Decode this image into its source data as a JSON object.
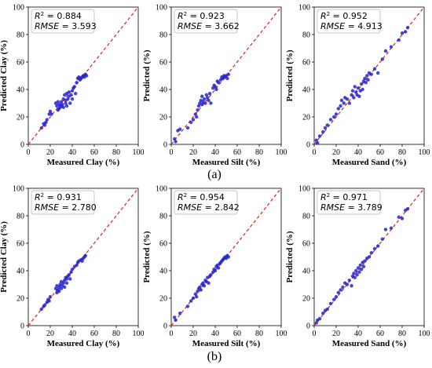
{
  "figure": {
    "panel_labels": [
      "(a)",
      "(b)"
    ]
  },
  "chart_data": [
    {
      "id": "a1",
      "row": 0,
      "col": 0,
      "type": "scatter",
      "xlabel": "Measured Clay (%)",
      "ylabel": "Predicted Clay (%)",
      "stats": {
        "r2": "0.884",
        "rmse": "3.593"
      },
      "xlim": [
        0,
        100
      ],
      "ylim": [
        0,
        100
      ],
      "ticks": [
        0,
        20,
        40,
        60,
        80,
        100
      ],
      "reference_line": "y = x",
      "point_color": "#2222cc",
      "line_color": "#e0201a",
      "points": [
        [
          12,
          12
        ],
        [
          14,
          15
        ],
        [
          15,
          14
        ],
        [
          16,
          16
        ],
        [
          17,
          18
        ],
        [
          19,
          22
        ],
        [
          20,
          24
        ],
        [
          21,
          22
        ],
        [
          25,
          30
        ],
        [
          26,
          28
        ],
        [
          27,
          31
        ],
        [
          27,
          25
        ],
        [
          28,
          26
        ],
        [
          28,
          29
        ],
        [
          29,
          27
        ],
        [
          30,
          28
        ],
        [
          30,
          31
        ],
        [
          31,
          29
        ],
        [
          32,
          27
        ],
        [
          32,
          33
        ],
        [
          33,
          36
        ],
        [
          34,
          30
        ],
        [
          34,
          32
        ],
        [
          35,
          28
        ],
        [
          35,
          37
        ],
        [
          36,
          33
        ],
        [
          37,
          38
        ],
        [
          37,
          35
        ],
        [
          38,
          30
        ],
        [
          39,
          36
        ],
        [
          40,
          33
        ],
        [
          40,
          39
        ],
        [
          41,
          41
        ],
        [
          42,
          42
        ],
        [
          43,
          37
        ],
        [
          44,
          45
        ],
        [
          45,
          48
        ],
        [
          46,
          49
        ],
        [
          47,
          47
        ],
        [
          48,
          48
        ],
        [
          49,
          49
        ],
        [
          50,
          50
        ],
        [
          51,
          49
        ],
        [
          52,
          51
        ],
        [
          53,
          50
        ]
      ]
    },
    {
      "id": "a2",
      "row": 0,
      "col": 1,
      "type": "scatter",
      "xlabel": "Measured Silt (%)",
      "ylabel": "Predicted (%)",
      "stats": {
        "r2": "0.923",
        "rmse": "3.662"
      },
      "xlim": [
        0,
        100
      ],
      "ylim": [
        0,
        100
      ],
      "ticks": [
        0,
        20,
        40,
        60,
        80,
        100
      ],
      "reference_line": "y = x",
      "point_color": "#2222cc",
      "line_color": "#e0201a",
      "points": [
        [
          3,
          4
        ],
        [
          4,
          2
        ],
        [
          6,
          10
        ],
        [
          8,
          11
        ],
        [
          15,
          12
        ],
        [
          18,
          16
        ],
        [
          20,
          18
        ],
        [
          22,
          22
        ],
        [
          23,
          20
        ],
        [
          24,
          25
        ],
        [
          25,
          28
        ],
        [
          26,
          30
        ],
        [
          27,
          32
        ],
        [
          28,
          35
        ],
        [
          28,
          29
        ],
        [
          29,
          31
        ],
        [
          30,
          33
        ],
        [
          31,
          30
        ],
        [
          32,
          36
        ],
        [
          33,
          34
        ],
        [
          34,
          32
        ],
        [
          35,
          37
        ],
        [
          36,
          30
        ],
        [
          38,
          41
        ],
        [
          39,
          43
        ],
        [
          40,
          42
        ],
        [
          41,
          40
        ],
        [
          42,
          46
        ],
        [
          43,
          45
        ],
        [
          45,
          47
        ],
        [
          46,
          49
        ],
        [
          47,
          48
        ],
        [
          48,
          50
        ],
        [
          49,
          49
        ],
        [
          50,
          50
        ],
        [
          51,
          48
        ],
        [
          52,
          51
        ]
      ]
    },
    {
      "id": "a3",
      "row": 0,
      "col": 2,
      "type": "scatter",
      "xlabel": "Measured Sand (%)",
      "ylabel": "Predicted (%)",
      "stats": {
        "r2": "0.952",
        "rmse": "4.913"
      },
      "xlim": [
        0,
        100
      ],
      "ylim": [
        0,
        100
      ],
      "ticks": [
        0,
        20,
        40,
        60,
        80,
        100
      ],
      "reference_line": "y = x",
      "point_color": "#2222cc",
      "line_color": "#e0201a",
      "points": [
        [
          2,
          3
        ],
        [
          3,
          1
        ],
        [
          5,
          6
        ],
        [
          8,
          9
        ],
        [
          10,
          12
        ],
        [
          12,
          14
        ],
        [
          15,
          18
        ],
        [
          18,
          20
        ],
        [
          20,
          22
        ],
        [
          22,
          26
        ],
        [
          24,
          28
        ],
        [
          25,
          32
        ],
        [
          27,
          30
        ],
        [
          28,
          34
        ],
        [
          30,
          33
        ],
        [
          32,
          30
        ],
        [
          34,
          36
        ],
        [
          35,
          39
        ],
        [
          36,
          34
        ],
        [
          37,
          42
        ],
        [
          38,
          38
        ],
        [
          39,
          36
        ],
        [
          40,
          41
        ],
        [
          41,
          35
        ],
        [
          42,
          39
        ],
        [
          43,
          44
        ],
        [
          44,
          40
        ],
        [
          45,
          46
        ],
        [
          46,
          48
        ],
        [
          47,
          45
        ],
        [
          48,
          50
        ],
        [
          49,
          47
        ],
        [
          50,
          52
        ],
        [
          52,
          51
        ],
        [
          55,
          55
        ],
        [
          58,
          52
        ],
        [
          62,
          62
        ],
        [
          65,
          68
        ],
        [
          70,
          71
        ],
        [
          77,
          76
        ],
        [
          80,
          81
        ],
        [
          83,
          82
        ],
        [
          85,
          85
        ]
      ]
    },
    {
      "id": "b1",
      "row": 1,
      "col": 0,
      "type": "scatter",
      "xlabel": "Measured Clay (%)",
      "ylabel": "Predicted Clay (%)",
      "stats": {
        "r2": "0.931",
        "rmse": "2.780"
      },
      "xlim": [
        0,
        100
      ],
      "ylim": [
        0,
        100
      ],
      "ticks": [
        0,
        20,
        40,
        60,
        80,
        100
      ],
      "reference_line": "y = x",
      "point_color": "#2222cc",
      "line_color": "#e0201a",
      "points": [
        [
          12,
          12
        ],
        [
          14,
          14
        ],
        [
          15,
          15
        ],
        [
          17,
          17
        ],
        [
          18,
          19
        ],
        [
          19,
          18
        ],
        [
          20,
          21
        ],
        [
          25,
          27
        ],
        [
          26,
          24
        ],
        [
          26,
          29
        ],
        [
          27,
          26
        ],
        [
          28,
          28
        ],
        [
          28,
          25
        ],
        [
          29,
          30
        ],
        [
          30,
          27
        ],
        [
          30,
          32
        ],
        [
          31,
          29
        ],
        [
          32,
          31
        ],
        [
          33,
          33
        ],
        [
          33,
          28
        ],
        [
          34,
          35
        ],
        [
          35,
          34
        ],
        [
          35,
          31
        ],
        [
          36,
          36
        ],
        [
          37,
          37
        ],
        [
          38,
          34
        ],
        [
          39,
          39
        ],
        [
          40,
          41
        ],
        [
          42,
          43
        ],
        [
          44,
          44
        ],
        [
          45,
          46
        ],
        [
          46,
          47
        ],
        [
          48,
          48
        ],
        [
          49,
          47
        ],
        [
          50,
          49
        ],
        [
          51,
          50
        ],
        [
          52,
          51
        ]
      ]
    },
    {
      "id": "b2",
      "row": 1,
      "col": 1,
      "type": "scatter",
      "xlabel": "Measured Silt (%)",
      "ylabel": "Predicted (%)",
      "stats": {
        "r2": "0.954",
        "rmse": "2.842"
      },
      "xlim": [
        0,
        100
      ],
      "ylim": [
        0,
        100
      ],
      "ticks": [
        0,
        20,
        40,
        60,
        80,
        100
      ],
      "reference_line": "y = x",
      "point_color": "#2222cc",
      "line_color": "#e0201a",
      "points": [
        [
          3,
          6
        ],
        [
          4,
          4
        ],
        [
          8,
          9
        ],
        [
          15,
          14
        ],
        [
          18,
          18
        ],
        [
          20,
          20
        ],
        [
          22,
          23
        ],
        [
          23,
          21
        ],
        [
          24,
          25
        ],
        [
          25,
          27
        ],
        [
          26,
          28
        ],
        [
          27,
          26
        ],
        [
          28,
          30
        ],
        [
          29,
          31
        ],
        [
          30,
          29
        ],
        [
          31,
          33
        ],
        [
          32,
          32
        ],
        [
          33,
          35
        ],
        [
          34,
          31
        ],
        [
          35,
          36
        ],
        [
          36,
          37
        ],
        [
          38,
          39
        ],
        [
          39,
          41
        ],
        [
          40,
          40
        ],
        [
          41,
          43
        ],
        [
          42,
          44
        ],
        [
          43,
          42
        ],
        [
          44,
          45
        ],
        [
          45,
          46
        ],
        [
          46,
          47
        ],
        [
          47,
          48
        ],
        [
          48,
          49
        ],
        [
          49,
          50
        ],
        [
          50,
          49
        ],
        [
          51,
          51
        ],
        [
          52,
          50
        ]
      ]
    },
    {
      "id": "b3",
      "row": 1,
      "col": 2,
      "type": "scatter",
      "xlabel": "Measured Sand (%)",
      "ylabel": "Predicted (%)",
      "stats": {
        "r2": "0.971",
        "rmse": "3.789"
      },
      "xlim": [
        0,
        100
      ],
      "ylim": [
        0,
        100
      ],
      "ticks": [
        0,
        20,
        40,
        60,
        80,
        100
      ],
      "reference_line": "y = x",
      "point_color": "#2222cc",
      "line_color": "#e0201a",
      "points": [
        [
          2,
          2
        ],
        [
          3,
          4
        ],
        [
          5,
          5
        ],
        [
          8,
          9
        ],
        [
          10,
          11
        ],
        [
          12,
          12
        ],
        [
          15,
          16
        ],
        [
          18,
          19
        ],
        [
          20,
          21
        ],
        [
          22,
          24
        ],
        [
          24,
          26
        ],
        [
          26,
          28
        ],
        [
          28,
          31
        ],
        [
          30,
          30
        ],
        [
          32,
          33
        ],
        [
          34,
          29
        ],
        [
          35,
          36
        ],
        [
          36,
          38
        ],
        [
          37,
          35
        ],
        [
          38,
          40
        ],
        [
          39,
          37
        ],
        [
          40,
          42
        ],
        [
          41,
          39
        ],
        [
          42,
          44
        ],
        [
          43,
          41
        ],
        [
          44,
          46
        ],
        [
          45,
          43
        ],
        [
          46,
          47
        ],
        [
          48,
          49
        ],
        [
          50,
          50
        ],
        [
          52,
          53
        ],
        [
          55,
          56
        ],
        [
          58,
          58
        ],
        [
          62,
          63
        ],
        [
          65,
          70
        ],
        [
          70,
          71
        ],
        [
          77,
          79
        ],
        [
          80,
          78
        ],
        [
          83,
          84
        ],
        [
          85,
          85
        ]
      ]
    }
  ]
}
